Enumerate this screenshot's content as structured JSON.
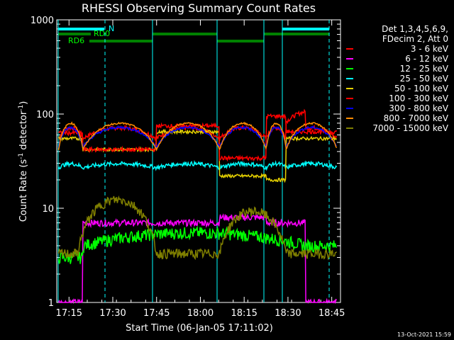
{
  "chart_data": {
    "type": "line",
    "title": "RHESSI Observing Summary Count Rates",
    "xlabel": "Start Time (06-Jan-05 17:11:02)",
    "ylabel_main": "Count Rate (s",
    "ylabel_sup1": "-1",
    "ylabel_mid": " detector",
    "ylabel_sup2": "-1",
    "ylabel_end": ")",
    "yscale": "log",
    "ylim": [
      1,
      1000
    ],
    "xlim_minutes": [
      17.18,
      18.8
    ],
    "x_ticks": [
      {
        "label": "17:15",
        "t": 17.25
      },
      {
        "label": "17:30",
        "t": 17.5
      },
      {
        "label": "17:45",
        "t": 17.75
      },
      {
        "label": "18:00",
        "t": 18.0
      },
      {
        "label": "18:15",
        "t": 18.25
      },
      {
        "label": "18:30",
        "t": 18.5
      },
      {
        "label": "18:45",
        "t": 18.75
      }
    ],
    "y_ticks": [
      {
        "label": "1",
        "v": 1
      },
      {
        "label": "10",
        "v": 10
      },
      {
        "label": "100",
        "v": 100
      },
      {
        "label": "1000",
        "v": 1000
      }
    ],
    "legend_header": [
      "Det 1,3,4,5,6,9,",
      "FDecim 2, Att 0"
    ],
    "series": [
      {
        "name": "3 - 6 keV",
        "color": "#ff0000"
      },
      {
        "name": "6 - 12 keV",
        "color": "#ff00ff"
      },
      {
        "name": "12 - 25 keV",
        "color": "#00ff00"
      },
      {
        "name": "25 - 50 keV",
        "color": "#00ffff"
      },
      {
        "name": "50 - 100 keV",
        "color": "#e6d200"
      },
      {
        "name": "100 - 300 keV",
        "color": "#ff0000"
      },
      {
        "name": "300 - 800 keV",
        "color": "#0000ff"
      },
      {
        "name": "800 - 7000 keV",
        "color": "#ff8c00"
      },
      {
        "name": "7000 - 15000 keV",
        "color": "#808000"
      }
    ],
    "flags": [
      {
        "label": "N",
        "color": "#00ffff"
      },
      {
        "label": "RD0",
        "color": "#008000"
      },
      {
        "label": "RD6",
        "color": "#008000"
      }
    ]
  },
  "footer_date": "13-Oct-2021 15:59"
}
